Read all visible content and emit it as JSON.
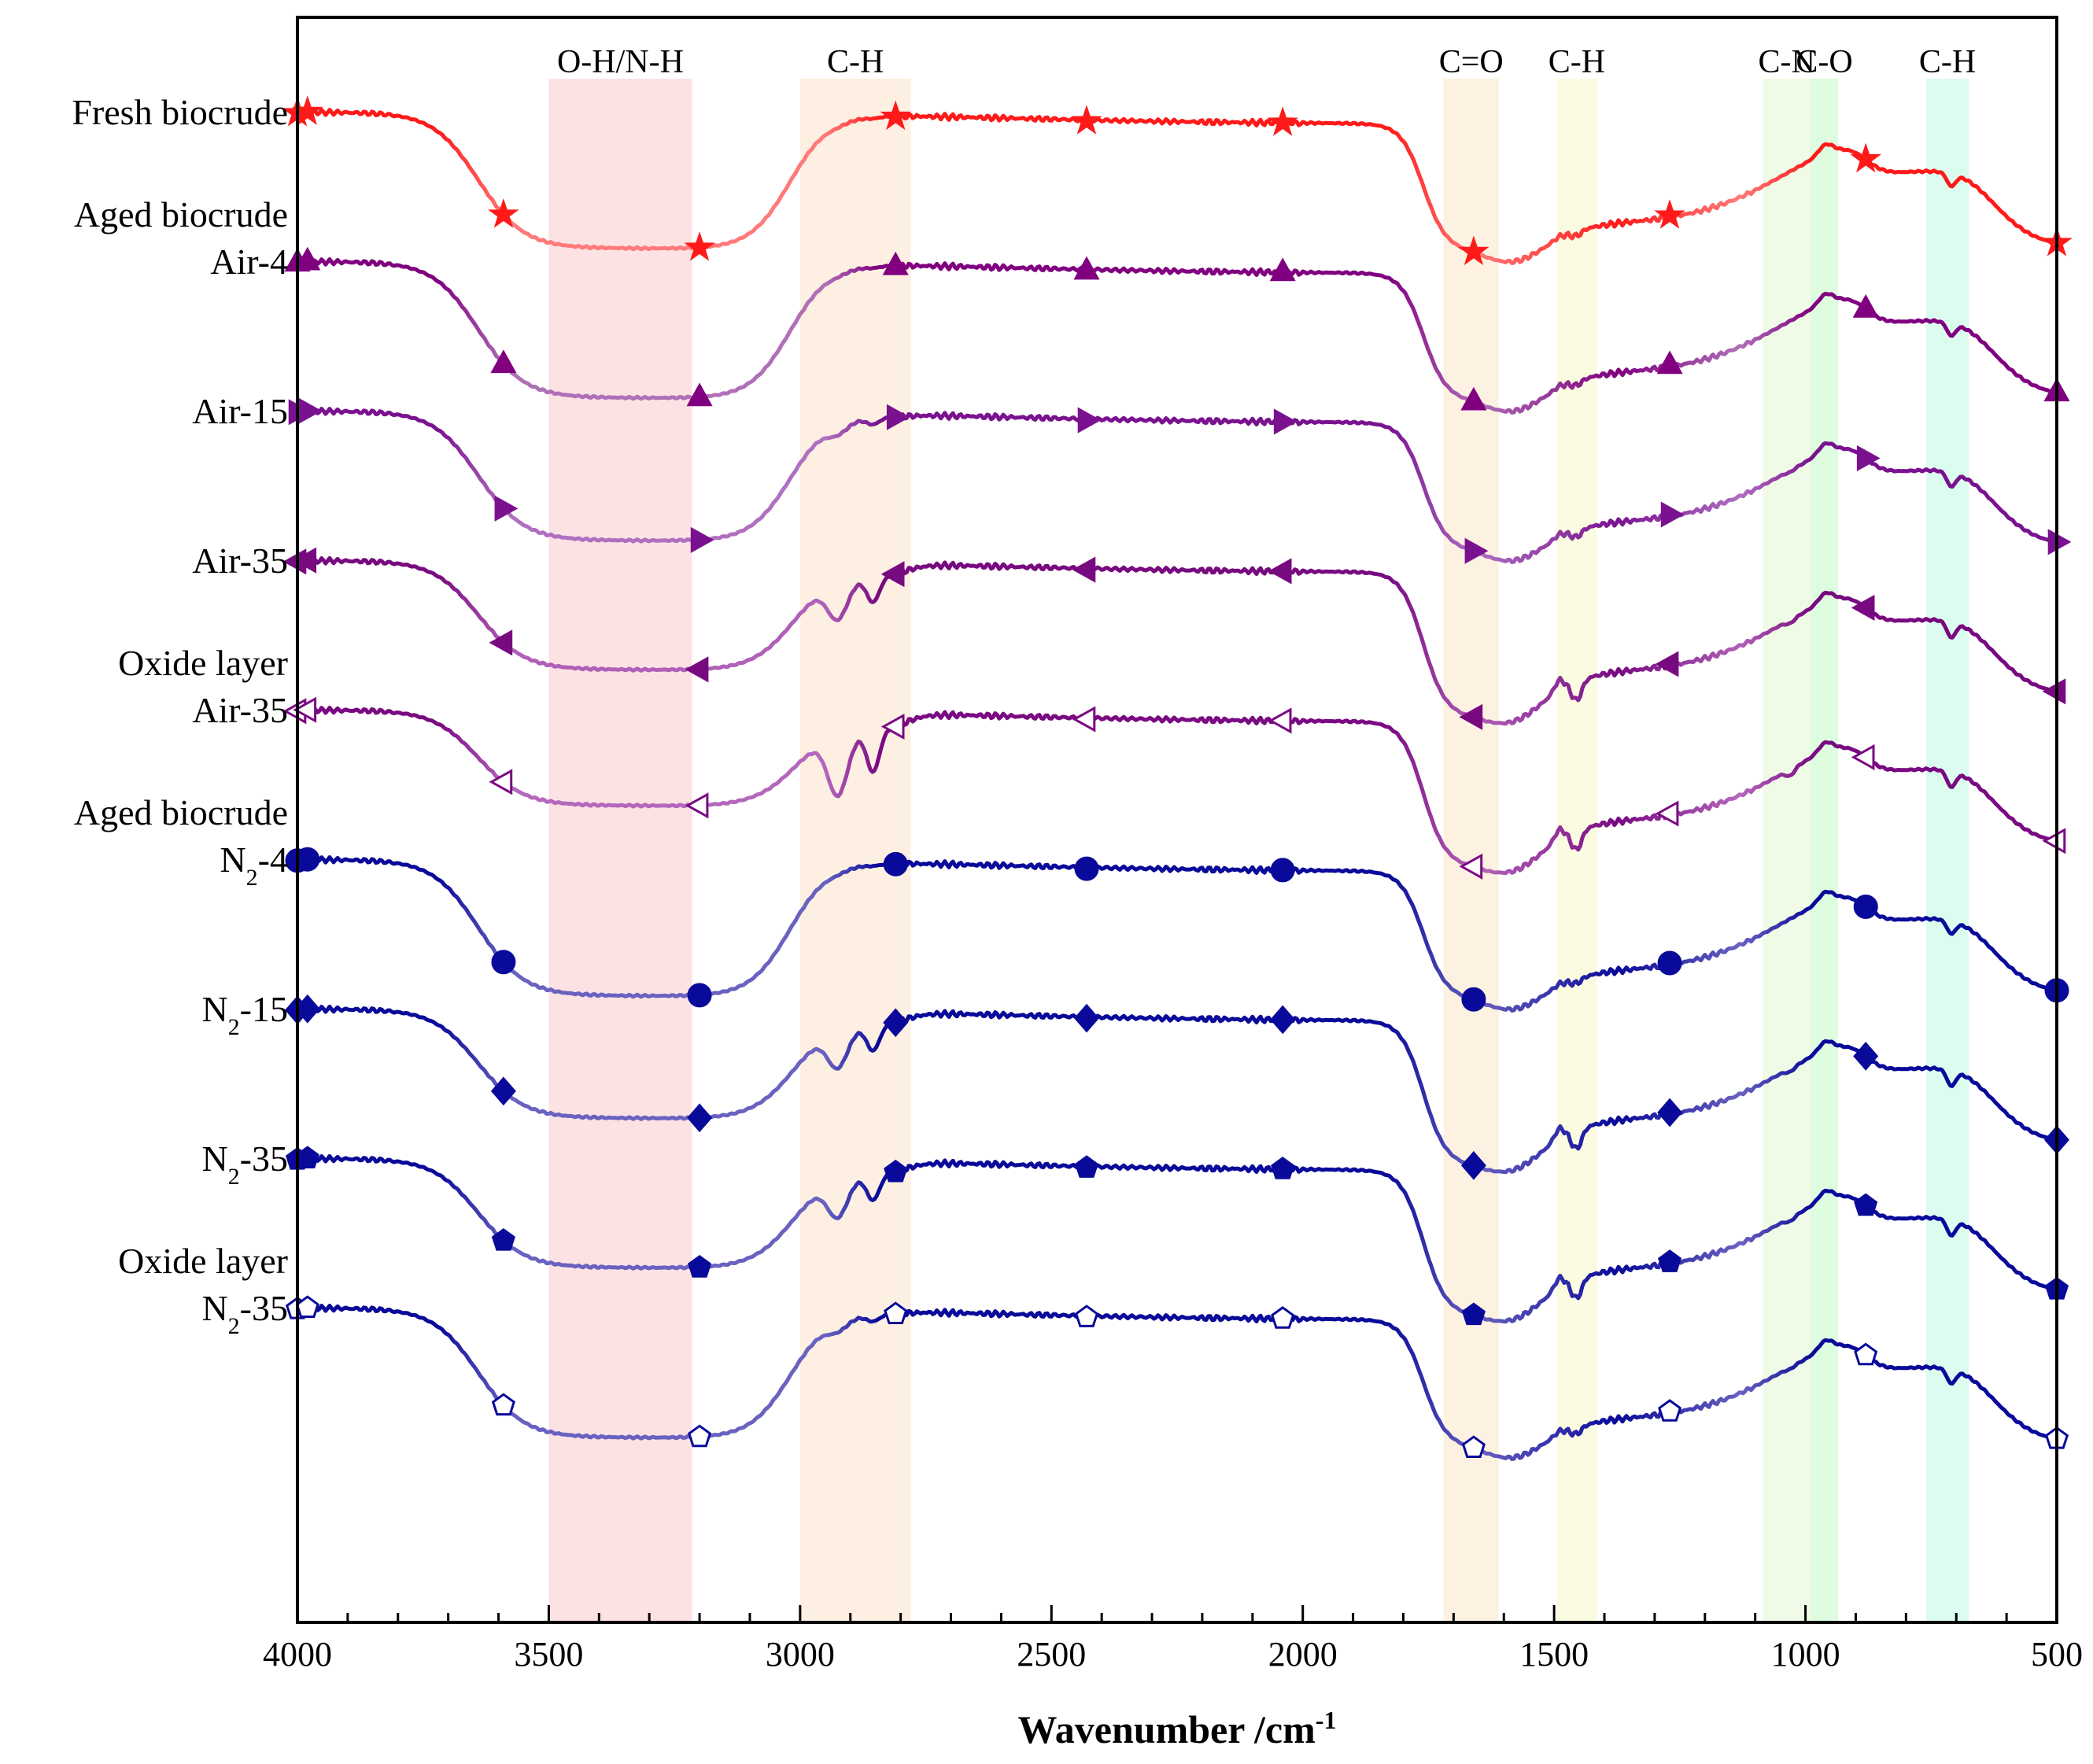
{
  "chart_data": {
    "type": "line",
    "title": "",
    "xlabel": "Wavenumber /cm",
    "xlabel_sup": "-1",
    "ylabel": "",
    "xlim": [
      4000,
      500
    ],
    "x_ticks": [
      4000,
      3500,
      3000,
      2500,
      2000,
      1500,
      1000,
      500
    ],
    "bands": [
      {
        "label": "O-H/N-H",
        "from": 3500,
        "to": 3215,
        "color": "#fde2e4"
      },
      {
        "label": "C-H",
        "from": 3000,
        "to": 2780,
        "color": "#fdf0e2"
      },
      {
        "label": "C=O",
        "from": 1720,
        "to": 1610,
        "color": "#fdf2e2"
      },
      {
        "label": "C-H",
        "from": 1495,
        "to": 1415,
        "color": "#fbfbe2"
      },
      {
        "label": "C-N",
        "from": 1085,
        "to": 990,
        "color": "#effbe6"
      },
      {
        "label": "C-O",
        "from": 990,
        "to": 935,
        "color": "#defde0"
      },
      {
        "label": "C-H",
        "from": 760,
        "to": 675,
        "color": "#dcfcf0"
      }
    ],
    "series": [
      {
        "name": "Fresh biocrude",
        "label_lines": [
          "Fresh biocrude"
        ],
        "color": "#ff1a1a",
        "fade": "#ff7a7a",
        "marker": "star",
        "filled": true,
        "offset": 0,
        "profile": "bulk"
      },
      {
        "name": "Aged biocrude Air-4",
        "label_lines": [
          "Aged biocrude",
          "Air-4"
        ],
        "color": "#800080",
        "fade": "#b070b8",
        "marker": "triangle-up",
        "filled": true,
        "offset": 1,
        "profile": "bulk"
      },
      {
        "name": "Air-15",
        "label_lines": [
          "Air-15"
        ],
        "color": "#7a1290",
        "fade": "#b070c0",
        "marker": "triangle-right",
        "filled": true,
        "offset": 2,
        "profile": "mid"
      },
      {
        "name": "Air-35",
        "label_lines": [
          "Air-35"
        ],
        "color": "#780a80",
        "fade": "#b060b8",
        "marker": "triangle-left",
        "filled": true,
        "offset": 3,
        "profile": "sharp"
      },
      {
        "name": "Oxide layer Air-35",
        "label_lines": [
          "Oxide layer",
          "Air-35"
        ],
        "color": "#7a0a82",
        "fade": "#b468bc",
        "marker": "triangle-left",
        "filled": false,
        "offset": 4,
        "profile": "oxide"
      },
      {
        "name": "Aged biocrude N2-4",
        "label_lines": [
          "Aged biocrude",
          "N{2}-4"
        ],
        "color": "#0a0a9a",
        "fade": "#6a62c0",
        "marker": "circle",
        "filled": true,
        "offset": 5,
        "profile": "bulk"
      },
      {
        "name": "N2-15",
        "label_lines": [
          "N{2}-15"
        ],
        "color": "#0a0a9a",
        "fade": "#6a62c0",
        "marker": "diamond",
        "filled": true,
        "offset": 6,
        "profile": "sharp"
      },
      {
        "name": "N2-35",
        "label_lines": [
          "N{2}-35"
        ],
        "color": "#0a0a9a",
        "fade": "#6a62c0",
        "marker": "pentagon",
        "filled": true,
        "offset": 7,
        "profile": "sharp"
      },
      {
        "name": "Oxide layer N2-35",
        "label_lines": [
          "Oxide layer",
          "N{2}-35"
        ],
        "color": "#0a0a9a",
        "fade": "#6a62c0",
        "marker": "pentagon",
        "filled": false,
        "offset": 8,
        "profile": "mid"
      }
    ],
    "marker_x": [
      3980,
      3590,
      3200,
      2810,
      2430,
      2040,
      1660,
      1270,
      880,
      500
    ]
  }
}
